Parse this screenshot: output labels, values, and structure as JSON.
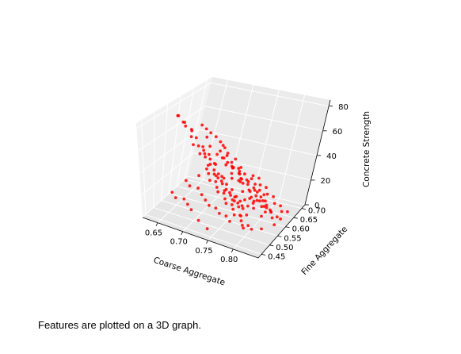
{
  "caption": "Features are plotted on a 3D graph.",
  "chart_data": {
    "type": "scatter3d",
    "title": "",
    "xlabel": "Coarse Aggregate",
    "ylabel": "Fine Aggregate",
    "zlabel": "Concrete Strength",
    "xticks": [
      "0.65",
      "0.70",
      "0.75",
      "0.80"
    ],
    "yticks": [
      "0.45",
      "0.50",
      "0.55",
      "0.60",
      "0.65",
      "0.70"
    ],
    "zticks": [
      "0",
      "20",
      "40",
      "60",
      "80"
    ],
    "xlim": [
      0.62,
      0.85
    ],
    "ylim": [
      0.43,
      0.72
    ],
    "zlim": [
      0,
      85
    ],
    "grid": true,
    "marker_color": "#ff0000",
    "series": [
      {
        "points": [
          [
            0.655,
            0.58,
            78
          ],
          [
            0.66,
            0.57,
            80
          ],
          [
            0.662,
            0.59,
            72
          ],
          [
            0.668,
            0.585,
            70
          ],
          [
            0.67,
            0.575,
            75
          ],
          [
            0.675,
            0.6,
            65
          ],
          [
            0.678,
            0.59,
            68
          ],
          [
            0.68,
            0.58,
            63
          ],
          [
            0.683,
            0.6,
            60
          ],
          [
            0.686,
            0.57,
            58
          ],
          [
            0.69,
            0.59,
            55
          ],
          [
            0.692,
            0.61,
            52
          ],
          [
            0.695,
            0.58,
            50
          ],
          [
            0.698,
            0.6,
            48
          ],
          [
            0.7,
            0.62,
            45
          ],
          [
            0.702,
            0.59,
            47
          ],
          [
            0.705,
            0.61,
            43
          ],
          [
            0.708,
            0.6,
            40
          ],
          [
            0.71,
            0.58,
            42
          ],
          [
            0.712,
            0.62,
            38
          ],
          [
            0.715,
            0.6,
            36
          ],
          [
            0.718,
            0.59,
            34
          ],
          [
            0.72,
            0.61,
            32
          ],
          [
            0.722,
            0.6,
            30
          ],
          [
            0.725,
            0.58,
            35
          ],
          [
            0.727,
            0.62,
            28
          ],
          [
            0.73,
            0.6,
            26
          ],
          [
            0.732,
            0.59,
            30
          ],
          [
            0.735,
            0.61,
            25
          ],
          [
            0.737,
            0.6,
            22
          ],
          [
            0.74,
            0.58,
            24
          ],
          [
            0.742,
            0.62,
            20
          ],
          [
            0.745,
            0.6,
            18
          ],
          [
            0.747,
            0.59,
            22
          ],
          [
            0.75,
            0.61,
            16
          ],
          [
            0.752,
            0.6,
            14
          ],
          [
            0.755,
            0.58,
            18
          ],
          [
            0.757,
            0.62,
            12
          ],
          [
            0.76,
            0.6,
            10
          ],
          [
            0.762,
            0.59,
            15
          ],
          [
            0.765,
            0.61,
            8
          ],
          [
            0.767,
            0.6,
            12
          ],
          [
            0.77,
            0.58,
            6
          ],
          [
            0.772,
            0.62,
            10
          ],
          [
            0.775,
            0.6,
            5
          ],
          [
            0.71,
            0.64,
            60
          ],
          [
            0.715,
            0.65,
            55
          ],
          [
            0.72,
            0.63,
            50
          ],
          [
            0.725,
            0.66,
            45
          ],
          [
            0.73,
            0.64,
            40
          ],
          [
            0.735,
            0.65,
            36
          ],
          [
            0.74,
            0.63,
            33
          ],
          [
            0.745,
            0.66,
            30
          ],
          [
            0.75,
            0.64,
            27
          ],
          [
            0.755,
            0.65,
            24
          ],
          [
            0.76,
            0.63,
            20
          ],
          [
            0.765,
            0.66,
            17
          ],
          [
            0.77,
            0.64,
            14
          ],
          [
            0.775,
            0.65,
            11
          ],
          [
            0.78,
            0.63,
            8
          ],
          [
            0.72,
            0.55,
            40
          ],
          [
            0.725,
            0.54,
            36
          ],
          [
            0.73,
            0.56,
            33
          ],
          [
            0.735,
            0.55,
            30
          ],
          [
            0.74,
            0.54,
            28
          ],
          [
            0.745,
            0.56,
            25
          ],
          [
            0.75,
            0.55,
            22
          ],
          [
            0.755,
            0.54,
            20
          ],
          [
            0.76,
            0.56,
            17
          ],
          [
            0.765,
            0.55,
            15
          ],
          [
            0.77,
            0.54,
            12
          ],
          [
            0.775,
            0.56,
            10
          ],
          [
            0.78,
            0.55,
            7
          ],
          [
            0.785,
            0.54,
            5
          ],
          [
            0.79,
            0.56,
            3
          ],
          [
            0.68,
            0.53,
            30
          ],
          [
            0.69,
            0.52,
            28
          ],
          [
            0.7,
            0.54,
            25
          ],
          [
            0.71,
            0.53,
            22
          ],
          [
            0.72,
            0.52,
            20
          ],
          [
            0.73,
            0.51,
            18
          ],
          [
            0.74,
            0.52,
            16
          ],
          [
            0.75,
            0.51,
            14
          ],
          [
            0.76,
            0.52,
            12
          ],
          [
            0.77,
            0.51,
            10
          ],
          [
            0.745,
            0.62,
            45
          ],
          [
            0.75,
            0.61,
            42
          ],
          [
            0.755,
            0.63,
            40
          ],
          [
            0.76,
            0.62,
            37
          ],
          [
            0.765,
            0.61,
            35
          ],
          [
            0.77,
            0.63,
            32
          ],
          [
            0.775,
            0.62,
            30
          ],
          [
            0.78,
            0.61,
            27
          ],
          [
            0.785,
            0.63,
            25
          ],
          [
            0.79,
            0.62,
            22
          ],
          [
            0.795,
            0.61,
            20
          ],
          [
            0.8,
            0.63,
            18
          ],
          [
            0.805,
            0.62,
            15
          ],
          [
            0.81,
            0.61,
            12
          ],
          [
            0.815,
            0.63,
            10
          ],
          [
            0.73,
            0.58,
            55
          ],
          [
            0.74,
            0.59,
            52
          ],
          [
            0.75,
            0.57,
            50
          ],
          [
            0.76,
            0.58,
            48
          ],
          [
            0.77,
            0.59,
            45
          ],
          [
            0.78,
            0.57,
            42
          ],
          [
            0.79,
            0.58,
            40
          ],
          [
            0.8,
            0.59,
            38
          ],
          [
            0.81,
            0.57,
            35
          ],
          [
            0.82,
            0.58,
            33
          ],
          [
            0.66,
            0.5,
            20
          ],
          [
            0.67,
            0.49,
            18
          ],
          [
            0.68,
            0.51,
            16
          ],
          [
            0.69,
            0.5,
            14
          ],
          [
            0.7,
            0.49,
            12
          ],
          [
            0.72,
            0.47,
            8
          ],
          [
            0.74,
            0.46,
            5
          ],
          [
            0.8,
            0.5,
            10
          ],
          [
            0.81,
            0.52,
            8
          ],
          [
            0.82,
            0.55,
            6
          ],
          [
            0.83,
            0.6,
            5
          ],
          [
            0.82,
            0.65,
            4
          ],
          [
            0.79,
            0.68,
            6
          ],
          [
            0.77,
            0.7,
            4
          ],
          [
            0.75,
            0.71,
            3
          ],
          [
            0.69,
            0.62,
            70
          ],
          [
            0.695,
            0.63,
            66
          ],
          [
            0.7,
            0.64,
            62
          ],
          [
            0.705,
            0.6,
            64
          ],
          [
            0.71,
            0.56,
            58
          ],
          [
            0.72,
            0.57,
            62
          ],
          [
            0.73,
            0.62,
            58
          ],
          [
            0.74,
            0.6,
            60
          ],
          [
            0.75,
            0.58,
            57
          ],
          [
            0.76,
            0.6,
            53
          ],
          [
            0.765,
            0.57,
            50
          ],
          [
            0.77,
            0.6,
            47
          ],
          [
            0.78,
            0.59,
            44
          ],
          [
            0.79,
            0.6,
            40
          ],
          [
            0.8,
            0.58,
            36
          ],
          [
            0.805,
            0.6,
            32
          ],
          [
            0.81,
            0.59,
            28
          ],
          [
            0.815,
            0.6,
            24
          ],
          [
            0.82,
            0.59,
            20
          ],
          [
            0.825,
            0.6,
            16
          ],
          [
            0.78,
            0.64,
            36
          ],
          [
            0.785,
            0.66,
            32
          ],
          [
            0.79,
            0.65,
            28
          ],
          [
            0.795,
            0.67,
            24
          ],
          [
            0.8,
            0.66,
            20
          ],
          [
            0.805,
            0.68,
            16
          ],
          [
            0.81,
            0.67,
            12
          ],
          [
            0.815,
            0.69,
            8
          ],
          [
            0.82,
            0.68,
            5
          ],
          [
            0.825,
            0.7,
            3
          ],
          [
            0.7,
            0.55,
            35
          ],
          [
            0.71,
            0.57,
            40
          ],
          [
            0.72,
            0.59,
            44
          ],
          [
            0.73,
            0.61,
            48
          ],
          [
            0.74,
            0.57,
            38
          ],
          [
            0.75,
            0.6,
            34
          ],
          [
            0.76,
            0.62,
            30
          ],
          [
            0.77,
            0.56,
            26
          ],
          [
            0.78,
            0.58,
            22
          ],
          [
            0.79,
            0.6,
            18
          ],
          [
            0.8,
            0.62,
            14
          ],
          [
            0.81,
            0.64,
            10
          ],
          [
            0.82,
            0.62,
            7
          ],
          [
            0.83,
            0.64,
            5
          ],
          [
            0.815,
            0.57,
            14
          ]
        ]
      }
    ]
  }
}
